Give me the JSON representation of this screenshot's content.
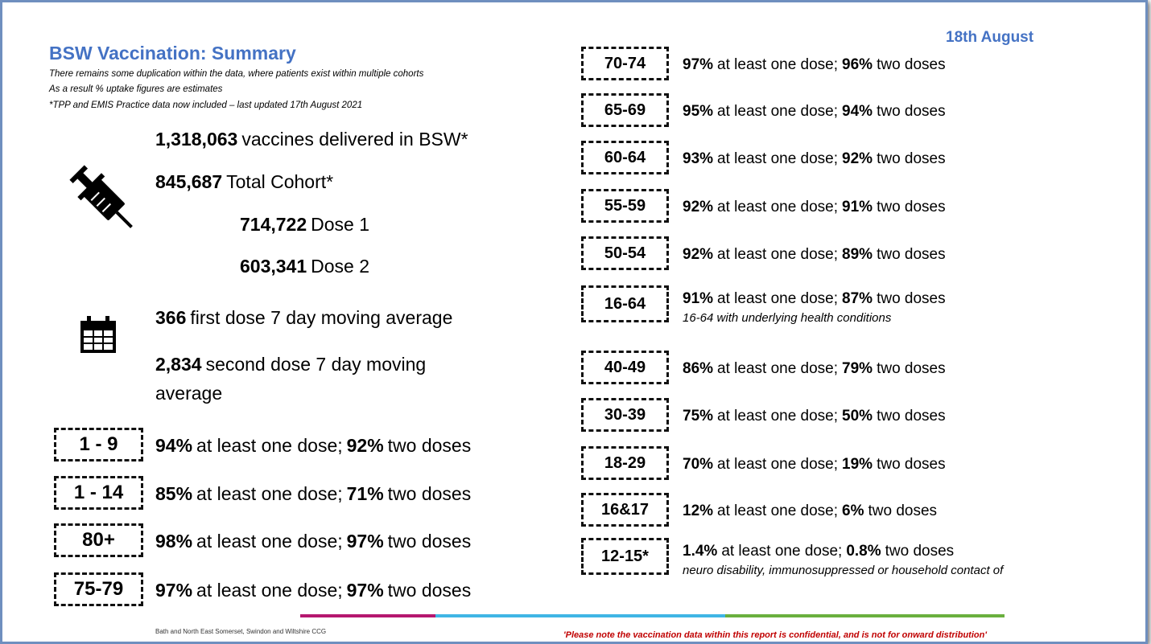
{
  "header": {
    "title": "BSW Vaccination: Summary",
    "date": "18th August",
    "notes": [
      "There remains some duplication within the data, where patients exist within multiple cohorts",
      "As a result % uptake figures are estimates",
      "*TPP and EMIS Practice data now included – last updated  17th August 2021"
    ]
  },
  "stats": [
    {
      "value": "1,318,063",
      "text": "vaccines delivered in BSW*"
    },
    {
      "value": "845,687",
      "text": "Total Cohort*"
    },
    {
      "value": "714,722",
      "text": "Dose 1"
    },
    {
      "value": "603,341",
      "text": "Dose 2"
    },
    {
      "value": "366",
      "text": "first dose 7 day moving average"
    },
    {
      "value": "2,834",
      "text": "second dose 7 day moving average"
    }
  ],
  "left_cohorts": [
    {
      "label": "1 - 9",
      "first": "94%",
      "first_text": "at least one dose;",
      "second": "92%",
      "second_text": "two doses"
    },
    {
      "label": "1 - 14",
      "first": "85%",
      "first_text": "at least one dose;",
      "second": "71%",
      "second_text": "two doses"
    },
    {
      "label": "80+",
      "first": "98%",
      "first_text": "at least one dose;",
      "second": "97%",
      "second_text": "two doses"
    },
    {
      "label": "75-79",
      "first": "97%",
      "first_text": "at least one dose;",
      "second": "97%",
      "second_text": "two doses"
    }
  ],
  "right_cohorts": [
    {
      "label": "70-74",
      "first": "97%",
      "first_text": "at least one dose;",
      "second": "96%",
      "second_text": "two doses"
    },
    {
      "label": "65-69",
      "first": "95%",
      "first_text": "at least one dose;",
      "second": "94%",
      "second_text": "two doses"
    },
    {
      "label": "60-64",
      "first": "93%",
      "first_text": "at least one dose;",
      "second": "92%",
      "second_text": "two doses"
    },
    {
      "label": "55-59",
      "first": "92%",
      "first_text": "at least one dose;",
      "second": "91%",
      "second_text": "two doses"
    },
    {
      "label": "50-54",
      "first": "92%",
      "first_text": "at least one dose;",
      "second": "89%",
      "second_text": "two doses"
    },
    {
      "label": "16-64",
      "first": "91%",
      "first_text": "at least one dose;",
      "second": "87%",
      "second_text": "two doses",
      "note": "16-64 with underlying health conditions"
    },
    {
      "label": "40-49",
      "first": "86%",
      "first_text": "at least one dose;",
      "second": "79%",
      "second_text": "two doses"
    },
    {
      "label": "30-39",
      "first": "75%",
      "first_text": "at least one dose;",
      "second": "50%",
      "second_text": "two doses"
    },
    {
      "label": "18-29",
      "first": "70%",
      "first_text": "at least one dose;",
      "second": "19%",
      "second_text": "two doses"
    },
    {
      "label": "16&17",
      "first": "12%",
      "first_text": "at least one dose;",
      "second": "6%",
      "second_text": "two doses"
    },
    {
      "label": "12-15*",
      "first": "1.4%",
      "first_text": "at least one dose;",
      "second": "0.8%",
      "second_text": "two doses",
      "note": "neuro disability, immunosuppressed or household contact of"
    }
  ],
  "footer": {
    "org": "Bath and North East Somerset, Swindon and Wiltshire CCG",
    "disclaimer": "'Please note the vaccination data within this report is confidential, and is not for onward distribution'"
  }
}
